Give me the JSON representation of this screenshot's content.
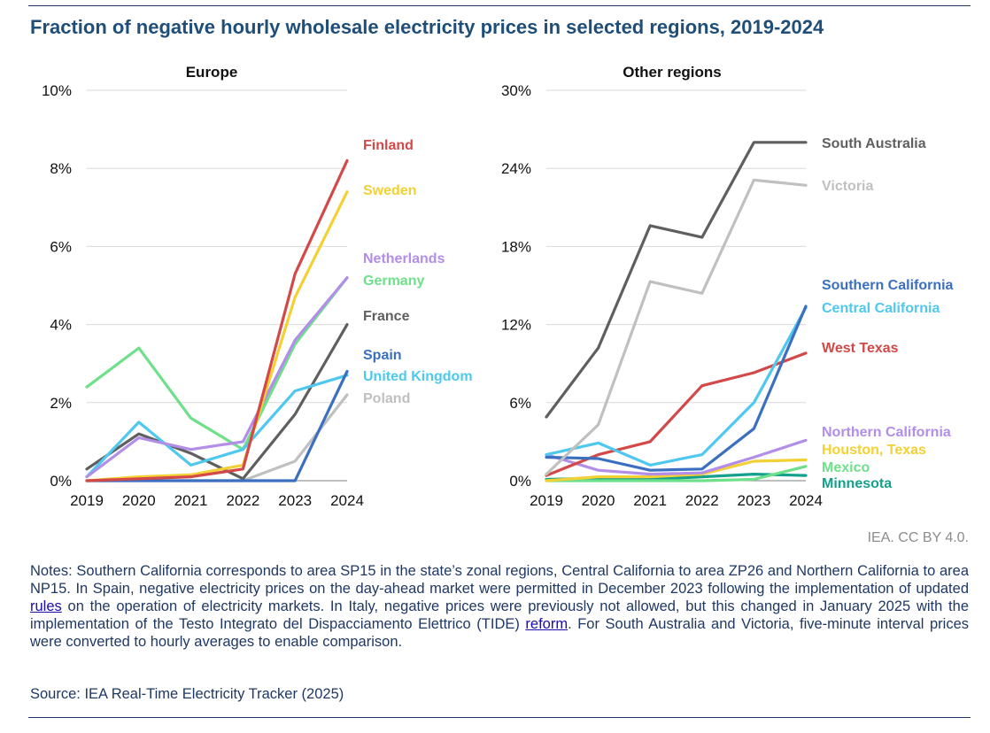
{
  "title": "Fraction of negative hourly wholesale electricity prices in selected regions, 2019-2024",
  "credit": "IEA. CC BY 4.0.",
  "notes": {
    "part1": "Notes: Southern California corresponds to area SP15 in the state’s zonal regions, Central California to area ZP26 and Northern California to area NP15. In Spain, negative electricity prices on the day-ahead market were permitted in December 2023 following the implementation of updated ",
    "link1": "rules",
    "part2": " on the operation of electricity markets. In Italy, negative prices were previously not allowed, but this changed in January 2025 with the implementation of the Testo Integrato del Dispacciamento Elettrico (TIDE) ",
    "link2": "reform",
    "part3": ". For South Australia and Victoria, five-minute interval prices were converted to hourly averages to enable comparison."
  },
  "source": "Source: IEA Real-Time Electricity Tracker (2025)",
  "chart_data": [
    {
      "type": "line",
      "title": "Europe",
      "xlabel": "",
      "ylabel": "",
      "categories": [
        "2019",
        "2020",
        "2021",
        "2022",
        "2023",
        "2024"
      ],
      "ylim": [
        0,
        10
      ],
      "yticks": [
        "0%",
        "2%",
        "4%",
        "6%",
        "8%",
        "10%"
      ],
      "series": [
        {
          "name": "Germany",
          "color": "#6ee08a",
          "values": [
            2.4,
            3.4,
            1.6,
            0.8,
            3.5,
            5.2
          ]
        },
        {
          "name": "Poland",
          "color": "#c0c0c0",
          "values": [
            0.0,
            0.0,
            0.0,
            0.0,
            0.5,
            2.2
          ]
        },
        {
          "name": "France",
          "color": "#5f5f5f",
          "values": [
            0.3,
            1.2,
            0.7,
            0.05,
            1.7,
            4.0
          ]
        },
        {
          "name": "United Kingdom",
          "color": "#4fc8ef",
          "values": [
            0.1,
            1.5,
            0.4,
            0.8,
            2.3,
            2.7
          ]
        },
        {
          "name": "Netherlands",
          "color": "#b28ee8",
          "values": [
            0.1,
            1.1,
            0.8,
            1.0,
            3.6,
            5.2
          ]
        },
        {
          "name": "Spain",
          "color": "#3b6fc0",
          "values": [
            0.0,
            0.0,
            0.0,
            0.0,
            0.0,
            2.8
          ]
        },
        {
          "name": "Sweden",
          "color": "#f3d033",
          "values": [
            0.0,
            0.1,
            0.15,
            0.4,
            4.7,
            7.4
          ]
        },
        {
          "name": "Finland",
          "color": "#d34848",
          "values": [
            0.0,
            0.05,
            0.1,
            0.3,
            5.3,
            8.2
          ]
        }
      ]
    },
    {
      "type": "line",
      "title": "Other regions",
      "xlabel": "",
      "ylabel": "",
      "categories": [
        "2019",
        "2020",
        "2021",
        "2022",
        "2023",
        "2024"
      ],
      "ylim": [
        0,
        30
      ],
      "yticks": [
        "0%",
        "6%",
        "12%",
        "18%",
        "24%",
        "30%"
      ],
      "series": [
        {
          "name": "Minnesota",
          "color": "#14a08c",
          "values": [
            0.1,
            0.2,
            0.1,
            0.3,
            0.5,
            0.4
          ]
        },
        {
          "name": "Mexico",
          "color": "#6ee08a",
          "values": [
            0.0,
            0.0,
            0.0,
            0.0,
            0.1,
            1.1
          ]
        },
        {
          "name": "Houston, Texas",
          "color": "#f3d033",
          "values": [
            0.0,
            0.3,
            0.3,
            0.5,
            1.5,
            1.6
          ]
        },
        {
          "name": "Northern California",
          "color": "#b28ee8",
          "values": [
            2.0,
            0.8,
            0.5,
            0.6,
            1.8,
            3.1
          ]
        },
        {
          "name": "West Texas",
          "color": "#d34848",
          "values": [
            0.4,
            2.0,
            3.0,
            7.3,
            8.3,
            9.8
          ]
        },
        {
          "name": "Central California",
          "color": "#4fc8ef",
          "values": [
            2.0,
            2.9,
            1.2,
            2.0,
            6.0,
            13.3
          ]
        },
        {
          "name": "Southern California",
          "color": "#3b6fc0",
          "values": [
            1.8,
            1.7,
            0.8,
            0.9,
            4.0,
            13.4
          ]
        },
        {
          "name": "Victoria",
          "color": "#c0c0c0",
          "values": [
            0.5,
            4.3,
            15.3,
            14.4,
            23.1,
            22.7
          ]
        },
        {
          "name": "South Australia",
          "color": "#5f5f5f",
          "values": [
            4.9,
            10.2,
            19.6,
            18.7,
            26.0,
            26.0
          ]
        }
      ]
    }
  ]
}
